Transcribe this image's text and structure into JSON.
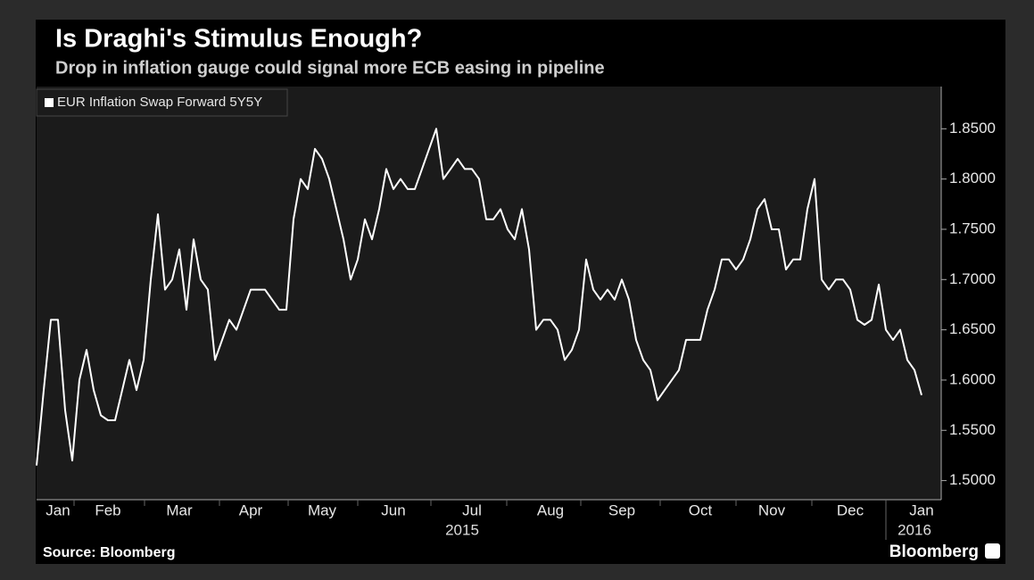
{
  "chart_data": {
    "type": "line",
    "title": "Is Draghi's Stimulus Enough?",
    "subtitle": "Drop in inflation gauge could signal more ECB easing in pipeline",
    "source": "Source: Bloomberg",
    "brand": "Bloomberg",
    "year_labels": [
      "2015",
      "2016"
    ],
    "categories": [
      null,
      null,
      null,
      "Jan",
      null,
      null,
      null,
      null,
      null,
      null,
      "Feb",
      null,
      null,
      null,
      null,
      null,
      null,
      null,
      null,
      null,
      "Mar",
      null,
      null,
      null,
      null,
      null,
      null,
      null,
      null,
      null,
      "Apr",
      null,
      null,
      null,
      null,
      null,
      null,
      null,
      null,
      null,
      "May",
      null,
      null,
      null,
      null,
      null,
      null,
      null,
      null,
      null,
      "Jun",
      null,
      null,
      null,
      null,
      null,
      null,
      null,
      null,
      null,
      null,
      "Jul",
      null,
      null,
      null,
      null,
      null,
      null,
      null,
      null,
      null,
      null,
      "Aug",
      null,
      null,
      null,
      null,
      null,
      null,
      null,
      null,
      null,
      "Sep",
      null,
      null,
      null,
      null,
      null,
      null,
      null,
      null,
      null,
      null,
      "Oct",
      null,
      null,
      null,
      null,
      null,
      null,
      null,
      null,
      null,
      "Nov",
      null,
      null,
      null,
      null,
      null,
      null,
      null,
      null,
      null,
      null,
      "Dec",
      null,
      null,
      null,
      null,
      null,
      null,
      null,
      null,
      null,
      "Jan"
    ],
    "series": [
      {
        "name": "EUR Inflation Swap Forward 5Y5Y",
        "color": "#ffffff",
        "values": [
          1.515,
          1.59,
          1.66,
          1.66,
          1.57,
          1.52,
          1.6,
          1.63,
          1.59,
          1.565,
          1.56,
          1.56,
          1.59,
          1.62,
          1.59,
          1.62,
          1.7,
          1.765,
          1.69,
          1.7,
          1.73,
          1.67,
          1.74,
          1.7,
          1.69,
          1.62,
          1.64,
          1.66,
          1.65,
          1.67,
          1.69,
          1.69,
          1.69,
          1.68,
          1.67,
          1.67,
          1.76,
          1.8,
          1.79,
          1.83,
          1.82,
          1.8,
          1.77,
          1.74,
          1.7,
          1.72,
          1.76,
          1.74,
          1.77,
          1.81,
          1.79,
          1.8,
          1.79,
          1.79,
          1.81,
          1.83,
          1.85,
          1.8,
          1.81,
          1.82,
          1.81,
          1.81,
          1.8,
          1.76,
          1.76,
          1.77,
          1.75,
          1.74,
          1.77,
          1.73,
          1.65,
          1.66,
          1.66,
          1.65,
          1.62,
          1.63,
          1.65,
          1.72,
          1.69,
          1.68,
          1.69,
          1.68,
          1.7,
          1.68,
          1.64,
          1.62,
          1.61,
          1.58,
          1.59,
          1.6,
          1.61,
          1.64,
          1.64,
          1.64,
          1.67,
          1.69,
          1.72,
          1.72,
          1.71,
          1.72,
          1.74,
          1.77,
          1.78,
          1.75,
          1.75,
          1.71,
          1.72,
          1.72,
          1.77,
          1.8,
          1.7,
          1.69,
          1.7,
          1.7,
          1.69,
          1.66,
          1.655,
          1.66,
          1.695,
          1.65,
          1.64,
          1.65,
          1.62,
          1.61,
          1.585
        ]
      }
    ],
    "ylim": [
      1.481,
      1.892
    ],
    "yticks": [
      {
        "value": 1.5,
        "label": "1.5000"
      },
      {
        "value": 1.55,
        "label": "1.5500"
      },
      {
        "value": 1.6,
        "label": "1.6000"
      },
      {
        "value": 1.65,
        "label": "1.6500"
      },
      {
        "value": 1.7,
        "label": "1.7000"
      },
      {
        "value": 1.75,
        "label": "1.7500"
      },
      {
        "value": 1.8,
        "label": "1.8000"
      },
      {
        "value": 1.85,
        "label": "1.8500"
      }
    ],
    "grid": false,
    "legend": "top-left"
  }
}
